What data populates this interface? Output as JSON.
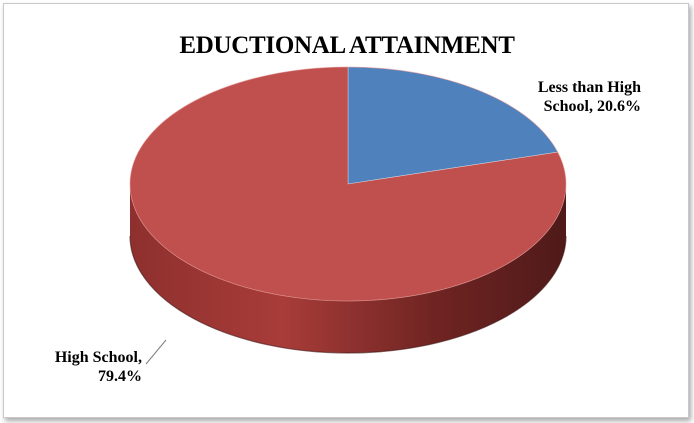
{
  "chart_data": {
    "type": "pie",
    "title": "EDUCTIONAL ATTAINMENT",
    "slices": [
      {
        "label": "Less than High School",
        "value": 20.6,
        "display_label": [
          "Less than High",
          "School, 20.6%"
        ],
        "color": "#4f81bd"
      },
      {
        "label": "High School",
        "value": 79.4,
        "display_label": [
          "High School,",
          "79.4%"
        ],
        "color": "#c0504d"
      }
    ],
    "style": "3d"
  }
}
